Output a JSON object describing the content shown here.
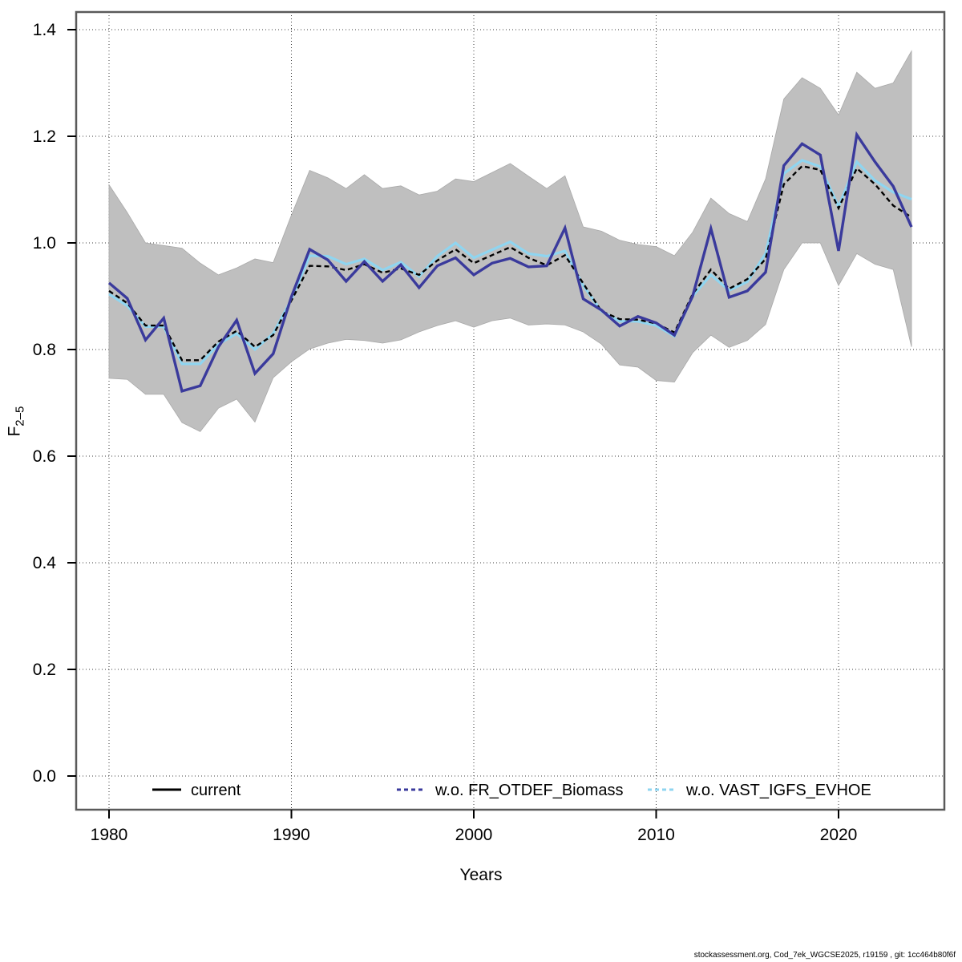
{
  "footer": "stockassessment.org, Cod_7ek_WGCSE2025, r19159 , git: 1cc464b80f6f",
  "axes": {
    "xlabel": "Years",
    "ylabel_main": "F",
    "ylabel_sub": "2–5",
    "x_ticks": [
      1980,
      1990,
      2000,
      2010,
      2020
    ],
    "y_ticks": [
      0.0,
      0.2,
      0.4,
      0.6,
      0.8,
      1.0,
      1.2,
      1.4
    ],
    "y_tick_labels": [
      "0.0",
      "0.2",
      "0.4",
      "0.6",
      "0.8",
      "1.0",
      "1.2",
      "1.4"
    ]
  },
  "legend": [
    {
      "label": "current",
      "color": "#000000",
      "dash": "none"
    },
    {
      "label": "w.o. FR_OTDEF_Biomass",
      "color": "#3a3a9c",
      "dash": "5,4"
    },
    {
      "label": "w.o. VAST_IGFS_EVHOE",
      "color": "#8fd5f0",
      "dash": "5,4"
    }
  ],
  "colors": {
    "band": "#bfbfbf",
    "current": "#000000",
    "wo_fr": "#3a3a9c",
    "wo_vast": "#8fd5f0",
    "border": "#5a5a5a",
    "grid": "#3c3c3c"
  },
  "chart_data": {
    "type": "line",
    "title": "",
    "xlabel": "Years",
    "ylabel": "F_2-5",
    "xlim": [
      1978,
      2025.5
    ],
    "ylim": [
      -0.06,
      1.43
    ],
    "grid": "dotted both axes at labeled ticks",
    "legend_position": "bottom inside plot",
    "x": [
      1980,
      1981,
      1982,
      1983,
      1984,
      1985,
      1986,
      1987,
      1988,
      1989,
      1990,
      1991,
      1992,
      1993,
      1994,
      1995,
      1996,
      1997,
      1998,
      1999,
      2000,
      2001,
      2002,
      2003,
      2004,
      2005,
      2006,
      2007,
      2008,
      2009,
      2010,
      2011,
      2012,
      2013,
      2014,
      2015,
      2016,
      2017,
      2018,
      2019,
      2020,
      2021,
      2022,
      2023,
      2024
    ],
    "series": [
      {
        "name": "current",
        "values": [
          0.91,
          0.887,
          0.845,
          0.845,
          0.78,
          0.78,
          0.815,
          0.835,
          0.805,
          0.827,
          0.892,
          0.957,
          0.956,
          0.949,
          0.96,
          0.944,
          0.952,
          0.94,
          0.967,
          0.988,
          0.962,
          0.977,
          0.992,
          0.972,
          0.958,
          0.977,
          0.924,
          0.872,
          0.857,
          0.856,
          0.849,
          0.832,
          0.904,
          0.95,
          0.914,
          0.932,
          0.97,
          1.11,
          1.144,
          1.137,
          1.065,
          1.14,
          1.11,
          1.07,
          1.048
        ]
      },
      {
        "name": "w.o. FR_OTDEF_Biomass",
        "values": [
          0.925,
          0.896,
          0.818,
          0.859,
          0.722,
          0.732,
          0.805,
          0.855,
          0.755,
          0.792,
          0.899,
          0.988,
          0.968,
          0.928,
          0.965,
          0.928,
          0.959,
          0.916,
          0.957,
          0.972,
          0.94,
          0.962,
          0.971,
          0.955,
          0.957,
          1.028,
          0.895,
          0.874,
          0.844,
          0.862,
          0.85,
          0.827,
          0.9,
          1.027,
          0.898,
          0.91,
          0.945,
          1.145,
          1.186,
          1.165,
          0.985,
          1.203,
          1.152,
          1.106,
          1.03
        ]
      },
      {
        "name": "w.o. VAST_IGFS_EVHOE",
        "values": [
          0.904,
          0.882,
          0.843,
          0.843,
          0.773,
          0.773,
          0.81,
          0.83,
          0.8,
          0.83,
          0.894,
          0.976,
          0.975,
          0.96,
          0.97,
          0.949,
          0.964,
          0.937,
          0.975,
          1.0,
          0.972,
          0.987,
          1.002,
          0.98,
          0.975,
          0.985,
          0.92,
          0.872,
          0.853,
          0.853,
          0.845,
          0.825,
          0.9,
          0.94,
          0.911,
          0.927,
          0.98,
          1.13,
          1.155,
          1.143,
          1.068,
          1.152,
          1.117,
          1.095,
          1.082
        ]
      }
    ],
    "confidence_band": {
      "applies_to": "current",
      "upper": [
        1.109,
        1.057,
        1.0,
        0.995,
        0.99,
        0.962,
        0.94,
        0.953,
        0.97,
        0.963,
        1.052,
        1.136,
        1.122,
        1.102,
        1.128,
        1.102,
        1.107,
        1.09,
        1.097,
        1.12,
        1.115,
        1.132,
        1.149,
        1.125,
        1.102,
        1.126,
        1.03,
        1.022,
        1.005,
        0.997,
        0.993,
        0.976,
        1.02,
        1.084,
        1.055,
        1.04,
        1.12,
        1.27,
        1.31,
        1.29,
        1.24,
        1.32,
        1.29,
        1.3,
        1.36
      ],
      "lower": [
        0.746,
        0.744,
        0.716,
        0.716,
        0.663,
        0.646,
        0.69,
        0.707,
        0.664,
        0.747,
        0.777,
        0.801,
        0.812,
        0.819,
        0.817,
        0.812,
        0.818,
        0.833,
        0.845,
        0.854,
        0.842,
        0.854,
        0.859,
        0.846,
        0.848,
        0.846,
        0.833,
        0.81,
        0.771,
        0.767,
        0.742,
        0.739,
        0.794,
        0.827,
        0.804,
        0.817,
        0.847,
        0.95,
        1.0,
        1.0,
        0.92,
        0.98,
        0.96,
        0.95,
        0.805
      ]
    }
  }
}
